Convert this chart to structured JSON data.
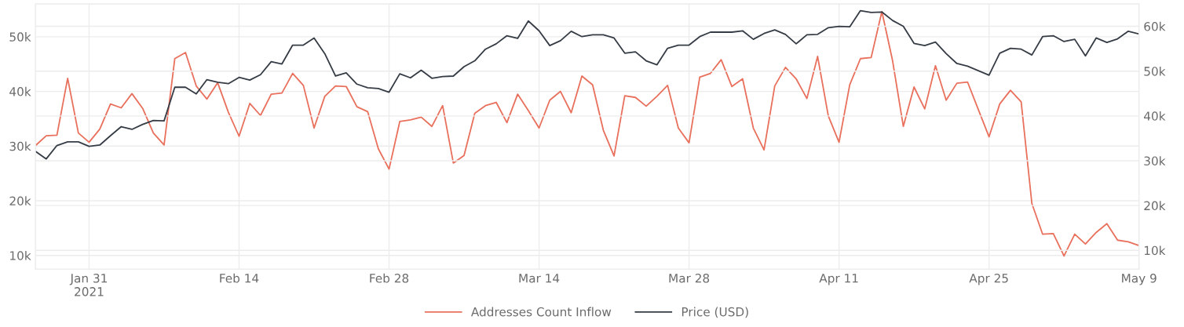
{
  "chart_data": {
    "type": "line",
    "x": [
      "2021-01-26",
      "2021-01-27",
      "2021-01-28",
      "2021-01-29",
      "2021-01-30",
      "2021-01-31",
      "2021-02-01",
      "2021-02-02",
      "2021-02-03",
      "2021-02-04",
      "2021-02-05",
      "2021-02-06",
      "2021-02-07",
      "2021-02-08",
      "2021-02-09",
      "2021-02-10",
      "2021-02-11",
      "2021-02-12",
      "2021-02-13",
      "2021-02-14",
      "2021-02-15",
      "2021-02-16",
      "2021-02-17",
      "2021-02-18",
      "2021-02-19",
      "2021-02-20",
      "2021-02-21",
      "2021-02-22",
      "2021-02-23",
      "2021-02-24",
      "2021-02-25",
      "2021-02-26",
      "2021-02-27",
      "2021-02-28",
      "2021-03-01",
      "2021-03-02",
      "2021-03-03",
      "2021-03-04",
      "2021-03-05",
      "2021-03-06",
      "2021-03-07",
      "2021-03-08",
      "2021-03-09",
      "2021-03-10",
      "2021-03-11",
      "2021-03-12",
      "2021-03-13",
      "2021-03-14",
      "2021-03-15",
      "2021-03-16",
      "2021-03-17",
      "2021-03-18",
      "2021-03-19",
      "2021-03-20",
      "2021-03-21",
      "2021-03-22",
      "2021-03-23",
      "2021-03-24",
      "2021-03-25",
      "2021-03-26",
      "2021-03-27",
      "2021-03-28",
      "2021-03-29",
      "2021-03-30",
      "2021-03-31",
      "2021-04-01",
      "2021-04-02",
      "2021-04-03",
      "2021-04-04",
      "2021-04-05",
      "2021-04-06",
      "2021-04-07",
      "2021-04-08",
      "2021-04-09",
      "2021-04-10",
      "2021-04-11",
      "2021-04-12",
      "2021-04-13",
      "2021-04-14",
      "2021-04-15",
      "2021-04-16",
      "2021-04-17",
      "2021-04-18",
      "2021-04-19",
      "2021-04-20",
      "2021-04-21",
      "2021-04-22",
      "2021-04-23",
      "2021-04-24",
      "2021-04-25",
      "2021-04-26",
      "2021-04-27",
      "2021-04-28",
      "2021-04-29",
      "2021-04-30",
      "2021-05-01",
      "2021-05-02",
      "2021-05-03",
      "2021-05-04",
      "2021-05-05",
      "2021-05-06",
      "2021-05-07",
      "2021-05-08",
      "2021-05-09"
    ],
    "series": [
      {
        "name": "Addresses Count Inflow",
        "color": "#e8705c",
        "values": [
          30100,
          31900,
          32000,
          42400,
          32400,
          30700,
          33100,
          37700,
          37000,
          39600,
          36900,
          32400,
          30200,
          46000,
          47100,
          41000,
          38600,
          41600,
          36200,
          31800,
          37800,
          35600,
          39500,
          39700,
          43300,
          41100,
          33300,
          39100,
          41000,
          40900,
          37200,
          36300,
          29500,
          25800,
          34500,
          34800,
          35300,
          33600,
          37400,
          26900,
          28300,
          36000,
          37400,
          38000,
          34300,
          39500,
          36500,
          33300,
          38400,
          40000,
          36100,
          42800,
          41200,
          32900,
          28200,
          39200,
          38900,
          37300,
          39100,
          41100,
          33300,
          30600,
          42600,
          43300,
          45800,
          40900,
          42300,
          33300,
          29300,
          41000,
          44400,
          42300,
          38700,
          46400,
          35500,
          30700,
          41200,
          46000,
          46200,
          54600,
          45600,
          33600,
          40800,
          36800,
          44700,
          38400,
          41500,
          41700,
          36700,
          31700,
          37700,
          40200,
          38100,
          19500,
          13900,
          14000,
          9900,
          13900,
          12100,
          14200,
          15800,
          12800,
          12500,
          11800
        ]
      },
      {
        "name": "Price (USD)",
        "color": "#363c46",
        "axis": "y2",
        "values": [
          32100,
          30400,
          33400,
          34200,
          34200,
          33200,
          33500,
          35600,
          37600,
          37000,
          38100,
          39000,
          38900,
          46400,
          46400,
          44900,
          48100,
          47500,
          47200,
          48600,
          48000,
          49200,
          52100,
          51600,
          55800,
          55800,
          57400,
          53900,
          48900,
          49600,
          47100,
          46300,
          46100,
          45300,
          49400,
          48500,
          50200,
          48400,
          48800,
          48900,
          51000,
          52300,
          54900,
          56100,
          57900,
          57300,
          61200,
          59000,
          55700,
          56800,
          58900,
          57700,
          58100,
          58100,
          57400,
          54000,
          54300,
          52300,
          51400,
          55100,
          55800,
          55800,
          57700,
          58700,
          58700,
          58700,
          59000,
          57100,
          58400,
          59200,
          58200,
          56100,
          58100,
          58200,
          59700,
          60000,
          59900,
          63500,
          63100,
          63200,
          61300,
          60000,
          56200,
          55700,
          56500,
          53900,
          51700,
          51100,
          50100,
          49100,
          54000,
          55100,
          54900,
          53600,
          57700,
          57900,
          56600,
          57100,
          53400,
          57400,
          56400,
          57200,
          58900,
          58300
        ]
      }
    ],
    "xlim": [
      "2021-01-26",
      "2021-05-09"
    ],
    "xticks": [
      {
        "value": "2021-01-31",
        "label": "Jan 31\n2021"
      },
      {
        "value": "2021-02-14",
        "label": "Feb 14"
      },
      {
        "value": "2021-02-28",
        "label": "Feb 28"
      },
      {
        "value": "2021-03-14",
        "label": "Mar 14"
      },
      {
        "value": "2021-03-28",
        "label": "Mar 28"
      },
      {
        "value": "2021-04-11",
        "label": "Apr 11"
      },
      {
        "value": "2021-04-25",
        "label": "Apr 25"
      },
      {
        "value": "2021-05-09",
        "label": "May 9"
      }
    ],
    "ylim": [
      7500,
      56000
    ],
    "yticks": [
      {
        "value": 10000,
        "label": "10k"
      },
      {
        "value": 20000,
        "label": "20k"
      },
      {
        "value": 30000,
        "label": "30k"
      },
      {
        "value": 40000,
        "label": "40k"
      },
      {
        "value": 50000,
        "label": "50k"
      }
    ],
    "y2lim": [
      5800,
      65000
    ],
    "y2ticks": [
      {
        "value": 10000,
        "label": "10k"
      },
      {
        "value": 20000,
        "label": "20k"
      },
      {
        "value": 30000,
        "label": "30k"
      },
      {
        "value": 40000,
        "label": "40k"
      },
      {
        "value": 50000,
        "label": "50k"
      },
      {
        "value": 60000,
        "label": "60k"
      }
    ],
    "grid": true,
    "legend": "bottom",
    "line_style": "solid"
  }
}
